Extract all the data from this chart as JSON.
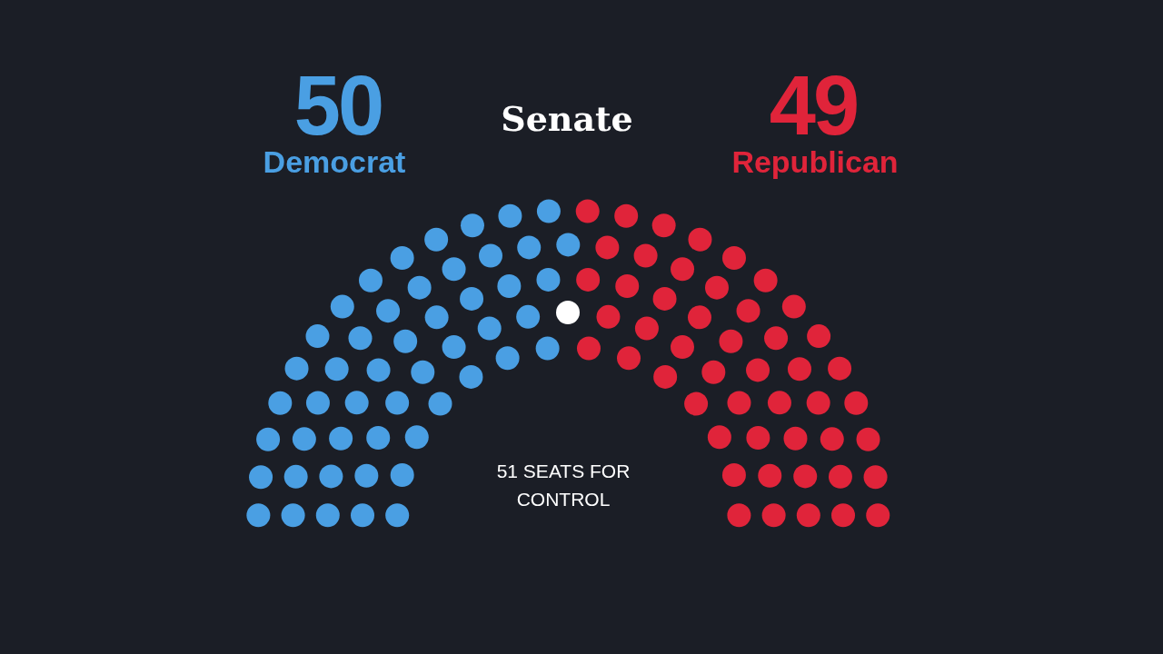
{
  "chart_data": {
    "type": "other",
    "title": "Senate",
    "categories": [
      "Democrat",
      "Republican"
    ],
    "values": [
      50,
      49
    ],
    "colors": [
      "#4a9fe3",
      "#e0243a"
    ],
    "data_labels": true,
    "annotations": [
      "51 SEATS FOR CONTROL"
    ]
  }
}
